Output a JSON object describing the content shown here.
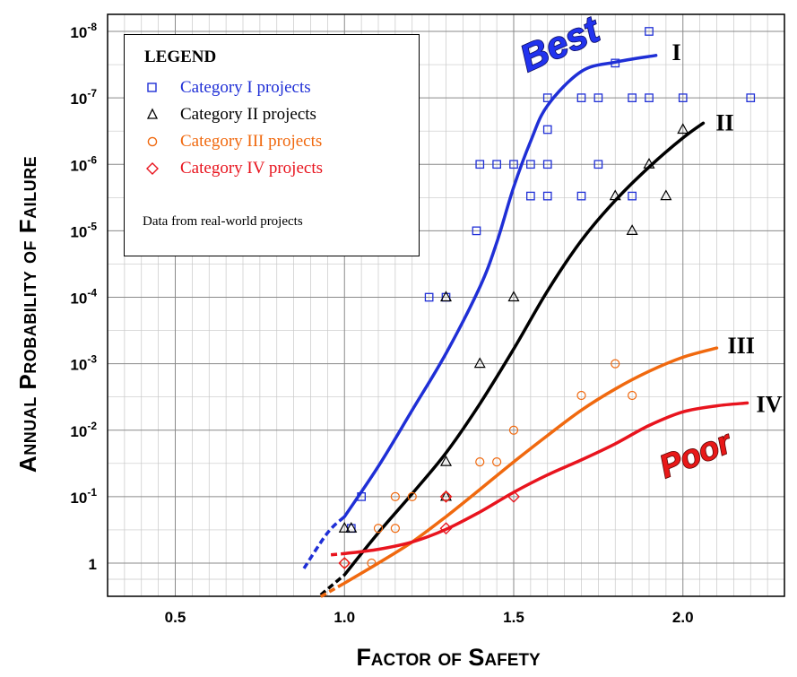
{
  "chart_data": {
    "type": "scatter",
    "xlabel": "Factor of Safety",
    "ylabel": "Annual Probability of Failure",
    "xlim": [
      0.3,
      2.3
    ],
    "x_ticks": [
      "0.5",
      "1.0",
      "1.5",
      "2.0"
    ],
    "x_tick_values": [
      0.5,
      1.0,
      1.5,
      2.0
    ],
    "y_scale": "log",
    "y_direction": "decreasing upward",
    "y_ticks": [
      {
        "base": "10",
        "exp": "-8",
        "value": 1e-08
      },
      {
        "base": "10",
        "exp": "-7",
        "value": 1e-07
      },
      {
        "base": "10",
        "exp": "-6",
        "value": 1e-06
      },
      {
        "base": "10",
        "exp": "-5",
        "value": 1e-05
      },
      {
        "base": "10",
        "exp": "-4",
        "value": 0.0001
      },
      {
        "base": "10",
        "exp": "-3",
        "value": 0.001
      },
      {
        "base": "10",
        "exp": "-2",
        "value": 0.01
      },
      {
        "base": "10",
        "exp": "-1",
        "value": 0.1
      },
      {
        "base": "1",
        "exp": "",
        "value": 1
      }
    ],
    "grid": true,
    "legend": {
      "title": "LEGEND",
      "placement": "top-left",
      "note": "Data from real-world projects"
    },
    "annotations": {
      "best": "Best",
      "poor": "Poor"
    },
    "series": [
      {
        "name": "Category I projects",
        "label": "I",
        "color": "#1f2fd6",
        "marker": "square",
        "points": [
          [
            1.02,
            0.3
          ],
          [
            1.05,
            0.1
          ],
          [
            1.25,
            0.0001
          ],
          [
            1.3,
            0.0001
          ],
          [
            1.39,
            1e-05
          ],
          [
            1.4,
            1e-06
          ],
          [
            1.45,
            1e-06
          ],
          [
            1.5,
            1e-06
          ],
          [
            1.55,
            1e-06
          ],
          [
            1.6,
            1e-06
          ],
          [
            1.55,
            3e-06
          ],
          [
            1.6,
            3e-06
          ],
          [
            1.7,
            3e-06
          ],
          [
            1.85,
            3e-06
          ],
          [
            1.6,
            3e-07
          ],
          [
            1.6,
            1e-07
          ],
          [
            1.7,
            1e-07
          ],
          [
            1.75,
            1e-07
          ],
          [
            1.85,
            1e-07
          ],
          [
            1.9,
            1e-07
          ],
          [
            2.0,
            1e-07
          ],
          [
            2.2,
            1e-07
          ],
          [
            1.75,
            1e-06
          ],
          [
            1.8,
            3e-08
          ],
          [
            1.9,
            1e-08
          ]
        ],
        "curve": [
          [
            0.88,
            1.2
          ],
          [
            0.95,
            0.35
          ],
          [
            1.0,
            0.2
          ],
          [
            1.1,
            0.035
          ],
          [
            1.2,
            0.005
          ],
          [
            1.3,
            0.0007
          ],
          [
            1.4,
            7e-05
          ],
          [
            1.45,
            1.5e-05
          ],
          [
            1.5,
            2.2e-06
          ],
          [
            1.55,
            4.5e-07
          ],
          [
            1.6,
            1.3e-07
          ],
          [
            1.7,
            4e-08
          ],
          [
            1.8,
            2.9e-08
          ],
          [
            1.92,
            2.3e-08
          ]
        ],
        "curve_dashed_below_x": 1.0
      },
      {
        "name": "Category II projects",
        "label": "II",
        "color": "#000000",
        "marker": "triangle",
        "points": [
          [
            1.0,
            0.3
          ],
          [
            1.02,
            0.3
          ],
          [
            1.3,
            0.03
          ],
          [
            1.3,
            0.1
          ],
          [
            1.4,
            0.001
          ],
          [
            1.5,
            0.0001
          ],
          [
            1.3,
            0.0001
          ],
          [
            1.8,
            3e-06
          ],
          [
            1.85,
            1e-05
          ],
          [
            1.9,
            1e-06
          ],
          [
            1.95,
            3e-06
          ],
          [
            2.0,
            3e-07
          ]
        ],
        "curve": [
          [
            0.93,
            3.0
          ],
          [
            1.0,
            1.5
          ],
          [
            1.1,
            0.35
          ],
          [
            1.2,
            0.09
          ],
          [
            1.3,
            0.022
          ],
          [
            1.4,
            0.004
          ],
          [
            1.5,
            0.0006
          ],
          [
            1.6,
            8e-05
          ],
          [
            1.7,
            1.4e-05
          ],
          [
            1.8,
            3.5e-06
          ],
          [
            1.9,
            1.1e-06
          ],
          [
            2.0,
            4e-07
          ],
          [
            2.06,
            2.4e-07
          ]
        ],
        "curve_dashed_below_x": 1.0
      },
      {
        "name": "Category III projects",
        "label": "III",
        "color": "#f0690f",
        "marker": "circle",
        "points": [
          [
            1.0,
            1.0
          ],
          [
            1.08,
            1.0
          ],
          [
            1.1,
            0.3
          ],
          [
            1.15,
            0.3
          ],
          [
            1.15,
            0.1
          ],
          [
            1.2,
            0.1
          ],
          [
            1.3,
            0.1
          ],
          [
            1.4,
            0.03
          ],
          [
            1.45,
            0.03
          ],
          [
            1.5,
            0.01
          ],
          [
            1.7,
            0.003
          ],
          [
            1.8,
            0.001
          ],
          [
            1.85,
            0.003
          ]
        ],
        "curve": [
          [
            0.93,
            3.2
          ],
          [
            1.0,
            2.0
          ],
          [
            1.1,
            1.0
          ],
          [
            1.2,
            0.48
          ],
          [
            1.3,
            0.2
          ],
          [
            1.4,
            0.078
          ],
          [
            1.5,
            0.03
          ],
          [
            1.6,
            0.012
          ],
          [
            1.7,
            0.005
          ],
          [
            1.8,
            0.0024
          ],
          [
            1.9,
            0.0013
          ],
          [
            2.0,
            0.0008
          ],
          [
            2.1,
            0.00058
          ]
        ],
        "curve_dashed_below_x": 0.97
      },
      {
        "name": "Category IV projects",
        "label": "IV",
        "color": "#e8141e",
        "marker": "diamond",
        "points": [
          [
            1.0,
            1.0
          ],
          [
            1.3,
            0.1
          ],
          [
            1.3,
            0.3
          ],
          [
            1.5,
            0.1
          ]
        ],
        "curve": [
          [
            0.96,
            0.75
          ],
          [
            1.0,
            0.72
          ],
          [
            1.1,
            0.62
          ],
          [
            1.2,
            0.48
          ],
          [
            1.3,
            0.31
          ],
          [
            1.4,
            0.17
          ],
          [
            1.5,
            0.086
          ],
          [
            1.6,
            0.047
          ],
          [
            1.7,
            0.028
          ],
          [
            1.8,
            0.016
          ],
          [
            1.9,
            0.0085
          ],
          [
            2.0,
            0.0053
          ],
          [
            2.1,
            0.0043
          ],
          [
            2.19,
            0.0039
          ]
        ],
        "curve_dashed_below_x": 0.99
      }
    ]
  }
}
